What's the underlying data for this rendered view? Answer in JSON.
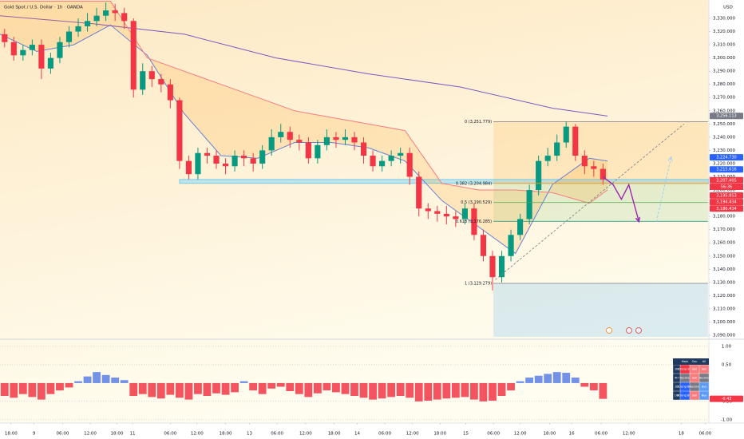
{
  "chart_data": [
    {
      "type": "candlestick",
      "title": "Gold Spot / U.S. Dollar · 1h · OANDA",
      "currency": "USD",
      "x": [
        0.5,
        1.5,
        2.5,
        3.5,
        4.5,
        5.5,
        6.5,
        7.5,
        8.5,
        9.5,
        10.5,
        11.5,
        12.5,
        13.5,
        14.5,
        15.5,
        16.5,
        17.5,
        18.5,
        19.5,
        20.5,
        21.5,
        22.5,
        23.5,
        24.5,
        25.5,
        26.5,
        27.5,
        28.5,
        29.5,
        30.5,
        31.5,
        32.5,
        33.5,
        34.5,
        35.5,
        36.5,
        37.5,
        38.5,
        39.5,
        40.5,
        41.5,
        42.5,
        43.5,
        44.5,
        45.5,
        46.5,
        47.5,
        48.5,
        49.5,
        50.5,
        51.5,
        52.5,
        53.5,
        54.5,
        55.5,
        56.5,
        57.5,
        58.5,
        59.5,
        60.5,
        61.5,
        62.5,
        63.5,
        64.5,
        65.5
      ],
      "open": [
        3318,
        3312,
        3302,
        3306,
        3310,
        3292,
        3300,
        3312,
        3320,
        3324,
        3328,
        3332,
        3336,
        3334,
        3328,
        3276,
        3290,
        3284,
        3280,
        3268,
        3222,
        3212,
        3228,
        3226,
        3220,
        3218,
        3226,
        3224,
        3220,
        3230,
        3240,
        3244,
        3238,
        3236,
        3224,
        3234,
        3240,
        3238,
        3240,
        3236,
        3226,
        3218,
        3222,
        3226,
        3228,
        3210,
        3186,
        3184,
        3182,
        3180,
        3178,
        3186,
        3166,
        3150,
        3134,
        3150,
        3166,
        3178,
        3200,
        3222,
        3226,
        3236,
        3248,
        3226,
        3218,
        3216
      ],
      "high": [
        3322,
        3316,
        3310,
        3314,
        3314,
        3304,
        3316,
        3324,
        3330,
        3334,
        3338,
        3342,
        3341,
        3338,
        3330,
        3296,
        3294,
        3288,
        3284,
        3270,
        3226,
        3232,
        3232,
        3230,
        3224,
        3230,
        3230,
        3228,
        3234,
        3246,
        3250,
        3248,
        3242,
        3240,
        3238,
        3246,
        3244,
        3246,
        3244,
        3240,
        3230,
        3226,
        3230,
        3232,
        3232,
        3214,
        3190,
        3188,
        3188,
        3184,
        3190,
        3190,
        3170,
        3154,
        3154,
        3170,
        3182,
        3204,
        3226,
        3232,
        3242,
        3252,
        3250,
        3230,
        3222,
        3220
      ],
      "low": [
        3308,
        3298,
        3298,
        3302,
        3284,
        3288,
        3296,
        3308,
        3316,
        3320,
        3324,
        3328,
        3328,
        3322,
        3270,
        3272,
        3278,
        3274,
        3262,
        3216,
        3208,
        3208,
        3220,
        3216,
        3212,
        3214,
        3218,
        3214,
        3216,
        3226,
        3236,
        3232,
        3230,
        3220,
        3220,
        3230,
        3232,
        3234,
        3230,
        3220,
        3214,
        3214,
        3218,
        3220,
        3204,
        3180,
        3178,
        3176,
        3174,
        3172,
        3174,
        3162,
        3146,
        3124,
        3130,
        3146,
        3162,
        3174,
        3196,
        3218,
        3222,
        3232,
        3222,
        3212,
        3210,
        3204
      ],
      "close": [
        3312,
        3302,
        3306,
        3310,
        3292,
        3300,
        3312,
        3320,
        3324,
        3328,
        3332,
        3336,
        3334,
        3328,
        3276,
        3290,
        3284,
        3280,
        3268,
        3222,
        3212,
        3228,
        3226,
        3220,
        3218,
        3226,
        3224,
        3220,
        3230,
        3240,
        3244,
        3238,
        3236,
        3224,
        3234,
        3240,
        3238,
        3240,
        3236,
        3226,
        3218,
        3222,
        3226,
        3228,
        3210,
        3186,
        3184,
        3182,
        3180,
        3178,
        3186,
        3166,
        3150,
        3134,
        3150,
        3166,
        3178,
        3200,
        3222,
        3226,
        3236,
        3248,
        3226,
        3218,
        3216,
        3208
      ],
      "up_color": "#089981",
      "down_color": "#f23645",
      "xlim": [
        0,
        77
      ],
      "xticks": [
        {
          "value": 1.2,
          "label": "18:00"
        },
        {
          "value": 3.7,
          "label": "9"
        },
        {
          "value": 6.8,
          "label": "06:00"
        },
        {
          "value": 9.8,
          "label": "12:00"
        },
        {
          "value": 12.7,
          "label": "18:00"
        },
        {
          "value": 14.4,
          "label": "11"
        },
        {
          "value": 18.5,
          "label": "06:00"
        },
        {
          "value": 21.4,
          "label": "12:00"
        },
        {
          "value": 24.5,
          "label": "18:00"
        },
        {
          "value": 27.1,
          "label": "13"
        },
        {
          "value": 30.1,
          "label": "06:00"
        },
        {
          "value": 33.2,
          "label": "12:00"
        },
        {
          "value": 36.3,
          "label": "18:00"
        },
        {
          "value": 38.8,
          "label": "14"
        },
        {
          "value": 41.8,
          "label": "06:00"
        },
        {
          "value": 44.8,
          "label": "12:00"
        },
        {
          "value": 47.8,
          "label": "18:00"
        },
        {
          "value": 50.6,
          "label": "15"
        },
        {
          "value": 53.6,
          "label": "06:00"
        },
        {
          "value": 56.5,
          "label": "12:00"
        },
        {
          "value": 59.7,
          "label": "18:00"
        },
        {
          "value": 62.1,
          "label": "16"
        },
        {
          "value": 65.3,
          "label": "06:00"
        },
        {
          "value": 68.3,
          "label": "12:00"
        },
        {
          "value": 74.0,
          "label": "18"
        },
        {
          "value": 76.6,
          "label": "06:00"
        }
      ],
      "ylim": [
        3088.8,
        3343.9
      ],
      "yticks": [
        {
          "value": 3090,
          "label": "3,090.000"
        },
        {
          "value": 3100,
          "label": "3,100.000"
        },
        {
          "value": 3110,
          "label": "3,110.000"
        },
        {
          "value": 3120,
          "label": "3,120.000"
        },
        {
          "value": 3130,
          "label": "3,130.000"
        },
        {
          "value": 3140,
          "label": "3,140.000"
        },
        {
          "value": 3150,
          "label": "3,150.000"
        },
        {
          "value": 3160,
          "label": "3,160.000"
        },
        {
          "value": 3170,
          "label": "3,170.000"
        },
        {
          "value": 3180,
          "label": "3,180.000"
        },
        {
          "value": 3190,
          "label": "3,190.000"
        },
        {
          "value": 3200,
          "label": "3,200.000"
        },
        {
          "value": 3210,
          "label": "3,210.000"
        },
        {
          "value": 3220,
          "label": "3,220.000"
        },
        {
          "value": 3230,
          "label": "3,230.000"
        },
        {
          "value": 3240,
          "label": "3,240.000"
        },
        {
          "value": 3250,
          "label": "3,250.000"
        },
        {
          "value": 3260,
          "label": "3,260.000"
        },
        {
          "value": 3270,
          "label": "3,270.000"
        },
        {
          "value": 3280,
          "label": "3,280.000"
        },
        {
          "value": 3290,
          "label": "3,290.000"
        },
        {
          "value": 3300,
          "label": "3,300.000"
        },
        {
          "value": 3310,
          "label": "3,310.000"
        },
        {
          "value": 3320,
          "label": "3,320.000"
        },
        {
          "value": 3330,
          "label": "3,330.000"
        }
      ],
      "grid": false,
      "overlays": [
        {
          "type": "line",
          "color": "#5b7ee5",
          "x": [
            0,
            4,
            8,
            12,
            16,
            20,
            24,
            28,
            32,
            36,
            40,
            44,
            48,
            52,
            56,
            60,
            64,
            66
          ],
          "values": [
            3318,
            3305,
            3310,
            3325,
            3302,
            3258,
            3226,
            3224,
            3236,
            3236,
            3232,
            3222,
            3192,
            3172,
            3152,
            3204,
            3224,
            3222
          ]
        },
        {
          "type": "line",
          "color": "#7e57c2",
          "x": [
            0,
            10,
            20,
            30,
            40,
            50,
            60,
            66
          ],
          "values": [
            3332,
            3326,
            3318,
            3300,
            3288,
            3278,
            3262,
            3256
          ]
        },
        {
          "type": "line",
          "color": "#f77c80",
          "fill": "rgba(255,152,0,0.16)",
          "x": [
            0,
            4,
            8,
            12,
            16,
            20,
            24,
            28,
            32,
            36,
            40,
            44,
            48,
            52,
            56,
            60,
            64,
            66
          ],
          "values": [
            3343,
            3343,
            3343,
            3343,
            3300,
            3290,
            3280,
            3270,
            3260,
            3255,
            3250,
            3245,
            3205,
            3200,
            3200,
            3198,
            3190,
            3200
          ]
        }
      ],
      "support_zone": {
        "x0": 19.5,
        "low": 3205,
        "high": 3208,
        "color": "#4fc3f7"
      },
      "fib": {
        "x0": 53.6,
        "x1": 76.9,
        "levels": [
          {
            "value": 3251.779,
            "label": "0 (3,251.779)",
            "color": "#787b86",
            "fill": "rgba(255,152,0,0.15)"
          },
          {
            "value": 3204.984,
            "label": "0.382 (3,204.984)",
            "color": "#ff9800",
            "fill": "rgba(76,175,80,0.14)"
          },
          {
            "value": 3190.529,
            "label": "0.5 (3,190.529)",
            "color": "#4caf50",
            "fill": "rgba(76,175,80,0.12)"
          },
          {
            "value": 3176.285,
            "label": "0.618 (3,176.285)",
            "color": "#089981"
          },
          {
            "value": 3129.279,
            "label": "1 (3,129.279)",
            "color": "#787b86",
            "fill": "rgba(33,150,243,0.16)"
          }
        ]
      },
      "drawings": [
        {
          "type": "arrow",
          "color": "#9c27b0",
          "dash": false,
          "x": [
            65.5,
            66.6,
            67.5,
            68.3,
            69.4
          ],
          "values": [
            3210,
            3204,
            3193,
            3204,
            3176
          ]
        },
        {
          "type": "line",
          "color": "#787b86",
          "dash": true,
          "x": [
            53.8,
            74.3
          ],
          "values": [
            3132,
            3250
          ]
        },
        {
          "type": "arrow",
          "color": "#90caf9",
          "dash": true,
          "x": [
            71.3,
            72.9
          ],
          "values": [
            3176,
            3225
          ]
        }
      ],
      "price_tags": [
        {
          "value": 3256.113,
          "label": "3,256.113",
          "color": "#787b86"
        },
        {
          "value": 3224.73,
          "label": "3,224.730",
          "color": "#2962ff"
        },
        {
          "value": 3215.616,
          "label": "3,215.616",
          "color": "#2962ff"
        },
        {
          "value": 3207.405,
          "label": "3,207.405",
          "color": "#f23645",
          "countdown": "56:36"
        },
        {
          "value": 3195.853,
          "label": "3,195.853",
          "color": "#f23645"
        },
        {
          "value": 3194.434,
          "label": "3,194.434",
          "color": "#f23645"
        },
        {
          "value": 3186.434,
          "label": "3,186.434",
          "color": "#f23645"
        }
      ]
    },
    {
      "type": "bar",
      "x": [
        0.5,
        1.5,
        2.5,
        3.5,
        4.5,
        5.5,
        6.5,
        7.5,
        8.5,
        9.5,
        10.5,
        11.5,
        12.5,
        13.5,
        14.5,
        15.5,
        16.5,
        17.5,
        18.5,
        19.5,
        20.5,
        21.5,
        22.5,
        23.5,
        24.5,
        25.5,
        26.5,
        27.5,
        28.5,
        29.5,
        30.5,
        31.5,
        32.5,
        33.5,
        34.5,
        35.5,
        36.5,
        37.5,
        38.5,
        39.5,
        40.5,
        41.5,
        42.5,
        43.5,
        44.5,
        45.5,
        46.5,
        47.5,
        48.5,
        49.5,
        50.5,
        51.5,
        52.5,
        53.5,
        54.5,
        55.5,
        56.5,
        57.5,
        58.5,
        59.5,
        60.5,
        61.5,
        62.5,
        63.5,
        64.5,
        65.5
      ],
      "values": [
        -0.35,
        -0.4,
        -0.3,
        -0.38,
        -0.45,
        -0.3,
        -0.2,
        -0.12,
        0.05,
        0.18,
        0.3,
        0.22,
        0.15,
        0.08,
        -0.35,
        -0.3,
        -0.38,
        -0.42,
        -0.32,
        -0.4,
        -0.45,
        -0.3,
        -0.35,
        -0.28,
        -0.32,
        -0.25,
        0.05,
        -0.2,
        -0.3,
        -0.15,
        -0.1,
        -0.22,
        -0.3,
        -0.38,
        -0.28,
        -0.2,
        -0.25,
        -0.3,
        -0.35,
        -0.4,
        -0.45,
        -0.42,
        -0.38,
        -0.35,
        -0.4,
        -0.5,
        -0.48,
        -0.45,
        -0.42,
        -0.4,
        -0.38,
        -0.45,
        -0.5,
        -0.48,
        -0.35,
        -0.2,
        0.05,
        0.15,
        0.2,
        0.25,
        0.3,
        0.28,
        0.15,
        -0.1,
        -0.2,
        -0.43
      ],
      "pos_color": "#5b7ee5",
      "neg_color": "#f23645",
      "xlim": [
        0,
        77
      ],
      "ylim": [
        -1.09,
        1.13
      ],
      "yticks": [
        {
          "value": 1,
          "label": "1.00"
        },
        {
          "value": 0.5,
          "label": "0.50"
        },
        {
          "value": -0.5,
          "label": "-0.50"
        },
        {
          "value": -1,
          "label": "-1.00"
        }
      ],
      "last_label": {
        "value": -0.43,
        "label": "-0.43",
        "color": "#f23645"
      }
    }
  ],
  "signals": {
    "header": [
      "Main",
      "Osc",
      "All"
    ],
    "rows": [
      [
        "1H",
        "Strong Sell",
        "Sell",
        "Sell"
      ],
      [
        "4H",
        "Neutral",
        "Sell",
        "Neutral"
      ],
      [
        "1D",
        "Strong Buy",
        "Neutral",
        "Buy"
      ],
      [
        "1W",
        "Strong Buy",
        "Sell",
        "Buy"
      ]
    ],
    "cell_colors": [
      [
        "#1e3a5f",
        "#f23645",
        "#f77c80",
        "#f77c80"
      ],
      [
        "#1e3a5f",
        "#787b86",
        "#f77c80",
        "#787b86"
      ],
      [
        "#1e3a5f",
        "#2962ff",
        "#787b86",
        "#5b9cf6"
      ],
      [
        "#1e3a5f",
        "#2962ff",
        "#f77c80",
        "#5b9cf6"
      ]
    ]
  }
}
